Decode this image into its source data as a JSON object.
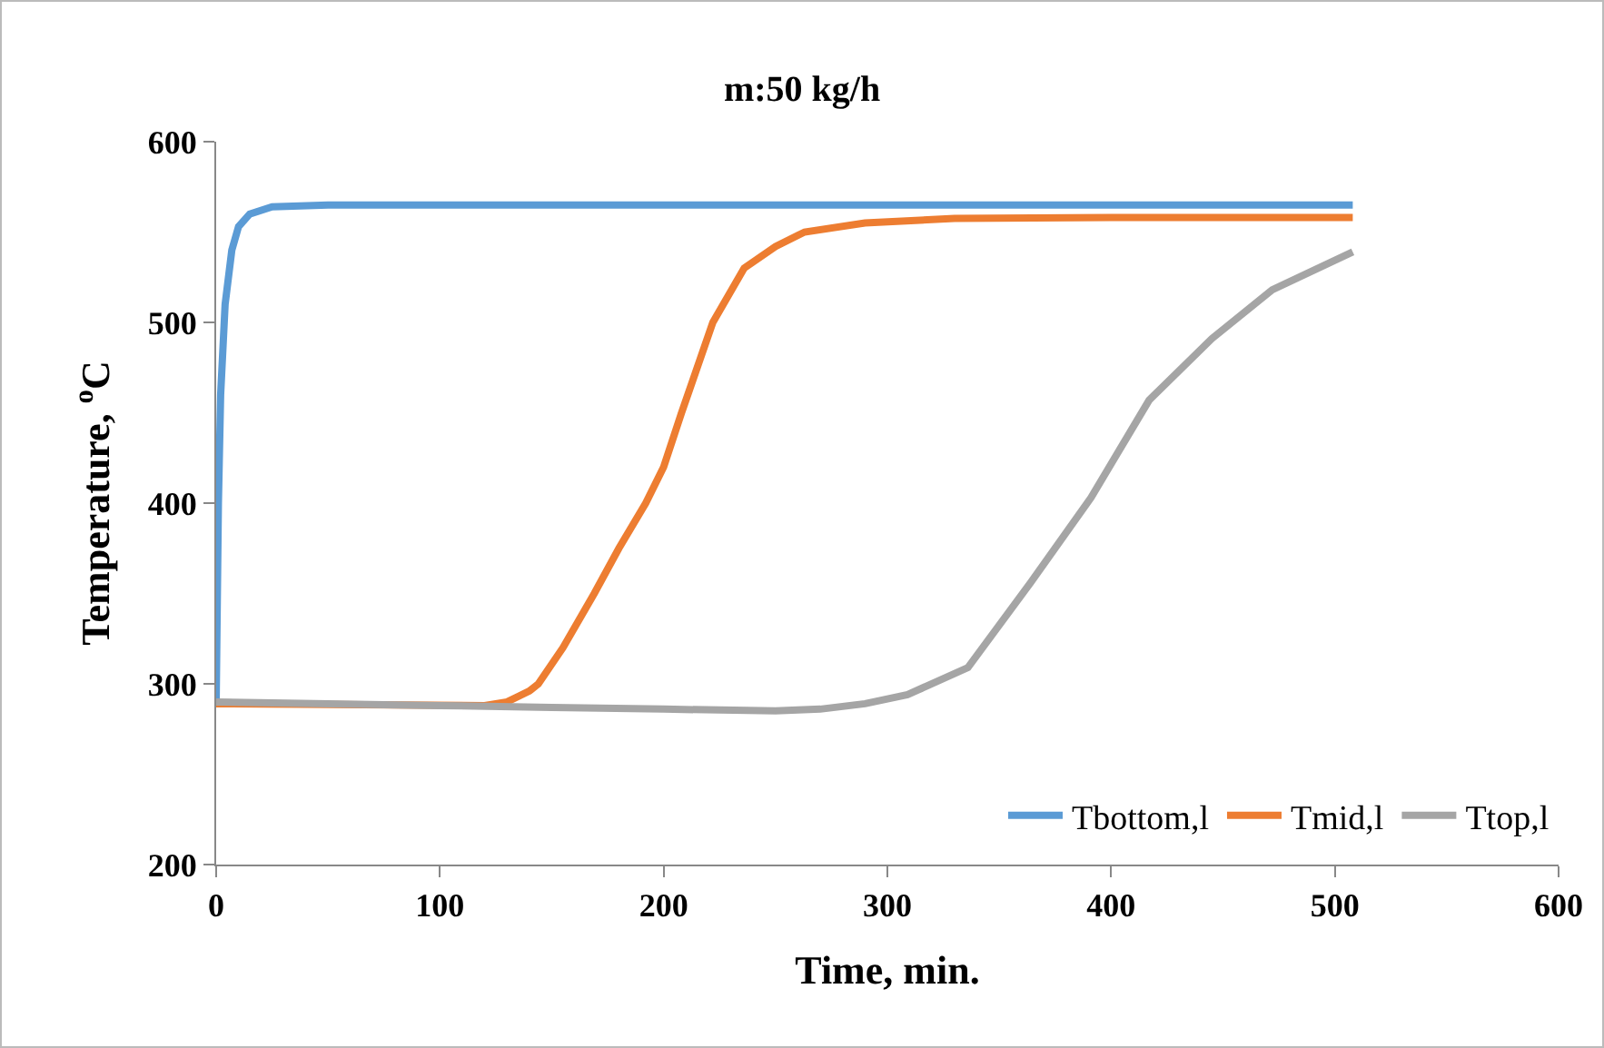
{
  "chart_data": {
    "type": "line",
    "title": "m:50 kg/h",
    "xlabel": "Time, min.",
    "ylabel": "Temperature, $^{o}$C",
    "xlim": [
      0,
      600
    ],
    "xticks": [
      0,
      100,
      200,
      300,
      400,
      500,
      600
    ],
    "ylim": [
      200,
      600
    ],
    "yticks": [
      200,
      300,
      400,
      500,
      600
    ],
    "grid": false,
    "legend": "bottom right",
    "marker": "none",
    "line_style": "solid",
    "series": [
      {
        "name": "Tbottom,l",
        "color": "#5b9bd5",
        "x": [
          0,
          1,
          2,
          4,
          7,
          10,
          15,
          25,
          50,
          508
        ],
        "values": [
          290,
          400,
          460,
          510,
          540,
          553,
          560,
          564,
          565,
          565
        ]
      },
      {
        "name": "Tmid,l",
        "color": "#ed7d31",
        "x": [
          0,
          120,
          130,
          140,
          144,
          155,
          169,
          180,
          192,
          200,
          208,
          222,
          236,
          250,
          263,
          290,
          330,
          400,
          508
        ],
        "values": [
          289,
          288,
          290,
          296,
          300,
          320,
          350,
          375,
          400,
          420,
          450,
          500,
          530,
          542,
          550,
          555,
          557.5,
          558,
          558
        ]
      },
      {
        "name": "Ttop,l",
        "color": "#a5a5a5",
        "x": [
          0,
          50,
          100,
          150,
          200,
          250,
          270,
          290,
          309,
          336,
          364,
          391,
          417,
          445,
          472,
          508
        ],
        "values": [
          290,
          289,
          288,
          287,
          286,
          285,
          286,
          289,
          294,
          309,
          356,
          403,
          457,
          491,
          518,
          539
        ]
      }
    ]
  }
}
